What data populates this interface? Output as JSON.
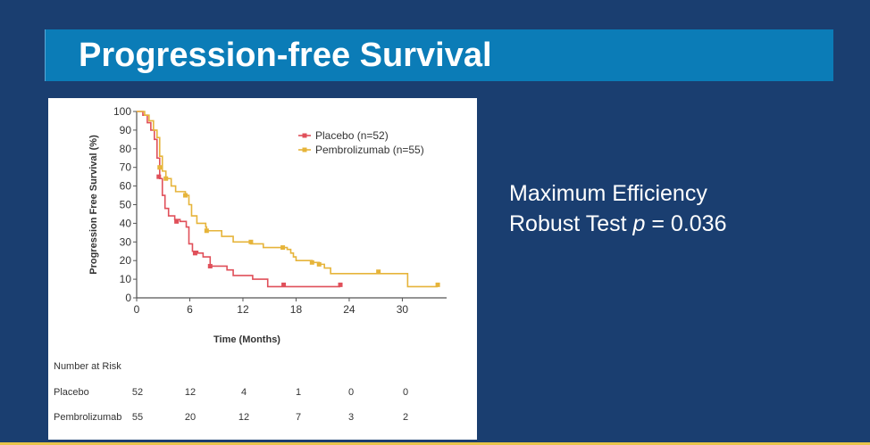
{
  "slide": {
    "title": "Progression-free Survival",
    "stats": {
      "line1": "Maximum Efficiency",
      "line2_prefix": "Robust Test ",
      "p_symbol": "p",
      "line2_suffix": " = 0.036"
    }
  },
  "chart_data": {
    "type": "line",
    "subtype": "kaplan-meier step",
    "xlabel": "Time (Months)",
    "ylabel": "Progression Free Survival (%)",
    "xlim": [
      0,
      35
    ],
    "ylim": [
      0,
      100
    ],
    "x_ticks": [
      0,
      6,
      12,
      18,
      24,
      30
    ],
    "y_ticks": [
      0,
      10,
      20,
      30,
      40,
      50,
      60,
      70,
      80,
      90,
      100
    ],
    "legend_position": "top-right",
    "series": [
      {
        "name": "Placebo (n=52)",
        "color": "#e0505a",
        "points": [
          [
            0,
            100
          ],
          [
            0.7,
            98
          ],
          [
            1.2,
            94
          ],
          [
            1.6,
            90
          ],
          [
            2,
            85
          ],
          [
            2.3,
            75
          ],
          [
            2.6,
            64
          ],
          [
            2.9,
            55
          ],
          [
            3.2,
            48
          ],
          [
            3.6,
            44
          ],
          [
            4.3,
            42
          ],
          [
            4.9,
            41
          ],
          [
            5.6,
            38
          ],
          [
            5.9,
            29
          ],
          [
            6.3,
            25
          ],
          [
            6.9,
            24
          ],
          [
            7.5,
            22
          ],
          [
            8.3,
            17
          ],
          [
            10.2,
            15
          ],
          [
            10.9,
            12
          ],
          [
            13.1,
            10
          ],
          [
            14.8,
            6
          ],
          [
            23,
            6
          ]
        ],
        "censor": [
          [
            2.5,
            65
          ],
          [
            4.5,
            41
          ],
          [
            6.6,
            24
          ],
          [
            8.3,
            17
          ],
          [
            16.6,
            7
          ],
          [
            23,
            7
          ]
        ]
      },
      {
        "name": "Pembrolizumab (n=55)",
        "color": "#e6b43a",
        "points": [
          [
            0,
            100
          ],
          [
            0.9,
            98
          ],
          [
            1.4,
            95
          ],
          [
            1.9,
            90
          ],
          [
            2.3,
            86
          ],
          [
            2.6,
            76
          ],
          [
            2.9,
            68
          ],
          [
            3.3,
            64
          ],
          [
            3.9,
            60
          ],
          [
            4.4,
            57
          ],
          [
            5.5,
            55
          ],
          [
            5.9,
            50
          ],
          [
            6.2,
            44
          ],
          [
            6.8,
            40
          ],
          [
            7.8,
            38
          ],
          [
            7.9,
            36
          ],
          [
            9.6,
            33
          ],
          [
            10.9,
            30
          ],
          [
            12.9,
            29
          ],
          [
            14.3,
            27
          ],
          [
            16.5,
            27
          ],
          [
            17,
            26
          ],
          [
            17.4,
            24
          ],
          [
            17.7,
            22
          ],
          [
            18,
            20
          ],
          [
            19.8,
            19
          ],
          [
            20.6,
            18
          ],
          [
            21.2,
            16
          ],
          [
            21.9,
            13
          ],
          [
            27.3,
            13
          ],
          [
            30.6,
            6
          ],
          [
            34,
            6
          ]
        ],
        "censor": [
          [
            2.6,
            70
          ],
          [
            3.3,
            64
          ],
          [
            5.5,
            55
          ],
          [
            7.9,
            36
          ],
          [
            12.9,
            30
          ],
          [
            16.5,
            27
          ],
          [
            19.8,
            19
          ],
          [
            20.6,
            18
          ],
          [
            27.3,
            14
          ],
          [
            34,
            7
          ]
        ]
      }
    ],
    "number_at_risk": {
      "header": "Number at Risk",
      "rows": [
        {
          "label": "Placebo",
          "values": [
            "52",
            "12",
            "4",
            "1",
            "0",
            "0"
          ]
        },
        {
          "label": "Pembrolizumab",
          "values": [
            "55",
            "20",
            "12",
            "7",
            "3",
            "2"
          ]
        }
      ]
    }
  }
}
